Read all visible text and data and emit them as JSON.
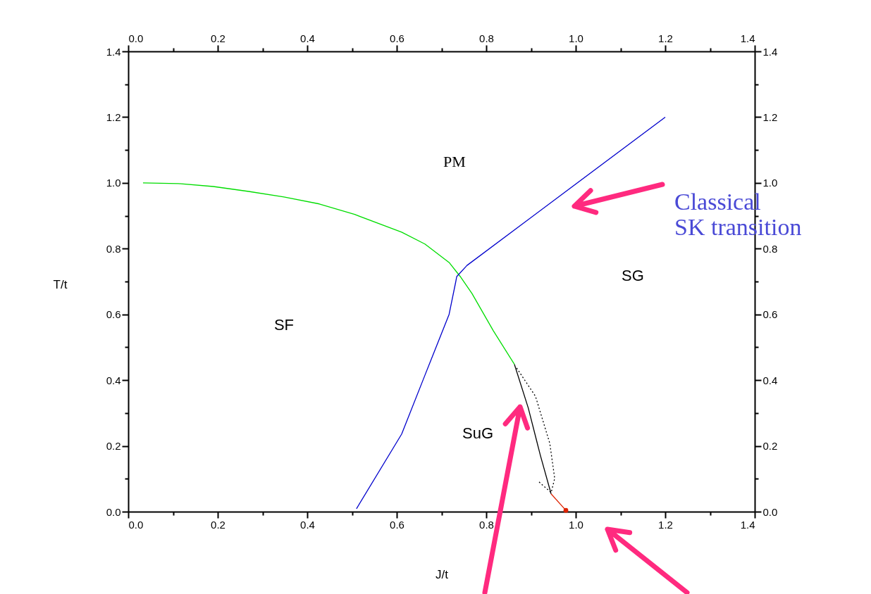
{
  "chart_data": {
    "type": "line",
    "xlabel": "J/t",
    "ylabel": "T/t",
    "xlim": [
      0,
      1.4
    ],
    "ylim": [
      0,
      1.4
    ],
    "x2lim": [
      0,
      1.4
    ],
    "y2lim": [
      0,
      1.4
    ],
    "xticks": [
      {
        "value": 0,
        "label": "0.0"
      },
      {
        "value": 0.1,
        "label": null
      },
      {
        "value": 0.2,
        "label": "0.2"
      },
      {
        "value": 0.3,
        "label": null
      },
      {
        "value": 0.4,
        "label": "0.4"
      },
      {
        "value": 0.5,
        "label": null
      },
      {
        "value": 0.6,
        "label": "0.6"
      },
      {
        "value": 0.7,
        "label": null
      },
      {
        "value": 0.8,
        "label": "0.8"
      },
      {
        "value": 0.9,
        "label": null
      },
      {
        "value": 1,
        "label": "1.0"
      },
      {
        "value": 1.1,
        "label": null
      },
      {
        "value": 1.2,
        "label": "1.2"
      },
      {
        "value": 1.3,
        "label": null
      },
      {
        "value": 1.4,
        "label": "1.4"
      }
    ],
    "x2ticks": [
      {
        "value": 0,
        "label": "0.0"
      },
      {
        "value": 0.1,
        "label": null
      },
      {
        "value": 0.2,
        "label": "0.2"
      },
      {
        "value": 0.3,
        "label": null
      },
      {
        "value": 0.4,
        "label": "0.4"
      },
      {
        "value": 0.5,
        "label": null
      },
      {
        "value": 0.6,
        "label": "0.6"
      },
      {
        "value": 0.7,
        "label": null
      },
      {
        "value": 0.8,
        "label": "0.8"
      },
      {
        "value": 0.9,
        "label": null
      },
      {
        "value": 1,
        "label": "1.0"
      },
      {
        "value": 1.1,
        "label": null
      },
      {
        "value": 1.2,
        "label": "1.2"
      },
      {
        "value": 1.3,
        "label": null
      },
      {
        "value": 1.4,
        "label": "1.4"
      }
    ],
    "yticks": [
      {
        "value": 0,
        "label": "0.0"
      },
      {
        "value": 0.1,
        "label": null
      },
      {
        "value": 0.2,
        "label": "0.2"
      },
      {
        "value": 0.3,
        "label": null
      },
      {
        "value": 0.4,
        "label": "0.4"
      },
      {
        "value": 0.5,
        "label": null
      },
      {
        "value": 0.6,
        "label": "0.6"
      },
      {
        "value": 0.7,
        "label": null
      },
      {
        "value": 0.8,
        "label": "0.8"
      },
      {
        "value": 0.9,
        "label": null
      },
      {
        "value": 1,
        "label": "1.0"
      },
      {
        "value": 1.1,
        "label": null
      },
      {
        "value": 1.2,
        "label": "1.2"
      },
      {
        "value": 1.3,
        "label": null
      },
      {
        "value": 1.4,
        "label": "1.4"
      }
    ],
    "y2ticks": [
      {
        "value": 0,
        "label": "0.0"
      },
      {
        "value": 0.1,
        "label": null
      },
      {
        "value": 0.2,
        "label": "0.2"
      },
      {
        "value": 0.3,
        "label": null
      },
      {
        "value": 0.4,
        "label": "0.4"
      },
      {
        "value": 0.5,
        "label": null
      },
      {
        "value": 0.6,
        "label": "0.6"
      },
      {
        "value": 0.7,
        "label": null
      },
      {
        "value": 0.8,
        "label": "0.8"
      },
      {
        "value": 0.9,
        "label": null
      },
      {
        "value": 1,
        "label": "1.0"
      },
      {
        "value": 1.1,
        "label": null
      },
      {
        "value": 1.2,
        "label": "1.2"
      },
      {
        "value": 1.3,
        "label": null
      },
      {
        "value": 1.4,
        "label": "1.4"
      }
    ],
    "grid": false,
    "marker": "none",
    "series": [
      {
        "color": "#00dd00",
        "x": [
          0.033,
          0.112,
          0.19,
          0.269,
          0.348,
          0.427,
          0.506,
          0.611,
          0.663,
          0.717,
          0.742,
          0.768,
          0.816,
          0.863
        ],
        "values": [
          1.0,
          0.998,
          0.989,
          0.974,
          0.957,
          0.936,
          0.904,
          0.85,
          0.814,
          0.758,
          0.715,
          0.664,
          0.55,
          0.448
        ]
      },
      {
        "color": "#0000cc",
        "x": [
          0.51,
          0.611,
          0.663,
          0.717,
          0.732,
          0.734,
          0.757,
          1.2
        ],
        "values": [
          0.009,
          0.236,
          0.415,
          0.6,
          0.7,
          0.715,
          0.749,
          1.2
        ]
      },
      {
        "color": "#000000",
        "x": [
          0.863,
          0.894,
          0.921,
          0.945
        ],
        "values": [
          0.448,
          0.315,
          0.171,
          0.054
        ]
      },
      {
        "color": "#000000",
        "line_style": "dotted",
        "x": [
          0.868,
          0.91,
          0.942,
          0.953,
          0.945,
          0.915
        ],
        "values": [
          0.437,
          0.351,
          0.208,
          0.101,
          0.058,
          0.094
        ]
      },
      {
        "color": "#dd2200",
        "x": [
          0.945,
          0.978
        ],
        "values": [
          0.054,
          0.004
        ]
      },
      {
        "type": "scatter",
        "marker": "circle",
        "color": "#dd2200",
        "x": [
          0.978
        ],
        "values": [
          0.004
        ]
      }
    ],
    "annotations": [
      "PM",
      "SF",
      "SG",
      "SuG",
      "Classical\nSK transition"
    ]
  }
}
